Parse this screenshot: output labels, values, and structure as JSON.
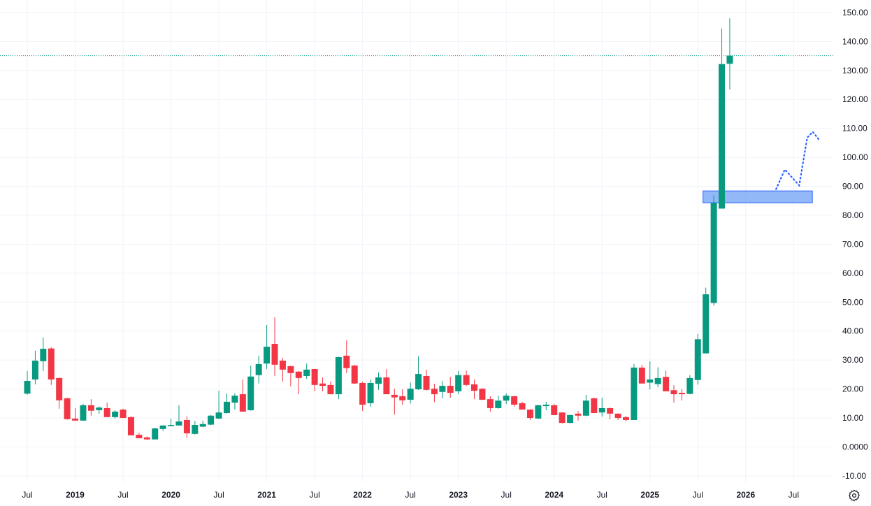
{
  "chart_data": {
    "type": "candlestick",
    "interval": "1M",
    "start": "2018-07",
    "ohlc_order": [
      "open",
      "high",
      "low",
      "close"
    ],
    "candles": [
      [
        18.4,
        26.2,
        18,
        22.8
      ],
      [
        23.3,
        33.2,
        21.6,
        29.8
      ],
      [
        29.6,
        37.8,
        26.2,
        33.9
      ],
      [
        34,
        34.4,
        21.4,
        23.3
      ],
      [
        23.8,
        24,
        13.2,
        16.1
      ],
      [
        16.8,
        17,
        9.4,
        9.6
      ],
      [
        9.8,
        13.4,
        9,
        9.1
      ],
      [
        9.1,
        14.9,
        9,
        14.4
      ],
      [
        14.4,
        16.5,
        10.8,
        12.5
      ],
      [
        12.7,
        14,
        11.5,
        13.6
      ],
      [
        13.4,
        15.3,
        10.3,
        10.3
      ],
      [
        10.3,
        12.7,
        9.8,
        12.2
      ],
      [
        12.9,
        13.2,
        10,
        10
      ],
      [
        10.3,
        10.6,
        4,
        4
      ],
      [
        4.2,
        4.9,
        3,
        3
      ],
      [
        3.3,
        3.6,
        2.4,
        2.6
      ],
      [
        2.6,
        6.6,
        2.6,
        6.4
      ],
      [
        6.2,
        7.5,
        5.5,
        7.4
      ],
      [
        7.2,
        9.8,
        7.2,
        7.6
      ],
      [
        7.4,
        14.4,
        7.4,
        8.8
      ],
      [
        9.3,
        10.6,
        3.2,
        4.7
      ],
      [
        4.5,
        9,
        4.3,
        7.6
      ],
      [
        7,
        9.1,
        6.8,
        7.9
      ],
      [
        7.7,
        11,
        7.5,
        10.8
      ],
      [
        9.8,
        19.4,
        9.6,
        11.9
      ],
      [
        11.7,
        18.5,
        11.5,
        15.6
      ],
      [
        15.3,
        18.5,
        12.9,
        17.7
      ],
      [
        18.2,
        23.3,
        12.2,
        12.2
      ],
      [
        12.7,
        28.1,
        12.5,
        24.3
      ],
      [
        24.8,
        31.5,
        21.9,
        28.6
      ],
      [
        28.8,
        42.1,
        26.9,
        34.6
      ],
      [
        35.6,
        44.8,
        24.5,
        28.4
      ],
      [
        29.8,
        30.8,
        22.6,
        26.7
      ],
      [
        27.9,
        28,
        20.9,
        25.5
      ],
      [
        26,
        26.2,
        18.2,
        23.8
      ],
      [
        24.5,
        28.8,
        23.5,
        26.7
      ],
      [
        26.9,
        27,
        19.2,
        21.4
      ],
      [
        21.9,
        24,
        19.2,
        21.1
      ],
      [
        21.4,
        22.6,
        18.2,
        18.2
      ],
      [
        18.2,
        31.2,
        16.5,
        31
      ],
      [
        31.5,
        36.8,
        25.5,
        27.2
      ],
      [
        28.1,
        28.3,
        21.7,
        21.9
      ],
      [
        22.1,
        22.5,
        12.4,
        14.6
      ],
      [
        15.1,
        23.3,
        13.9,
        22.1
      ],
      [
        21.8,
        25.7,
        19.7,
        24
      ],
      [
        24,
        26.9,
        18.2,
        18.2
      ],
      [
        18,
        20.1,
        11.2,
        17.1
      ],
      [
        17.5,
        19.9,
        14.6,
        16.1
      ],
      [
        16.3,
        22.2,
        15,
        20.1
      ],
      [
        19.9,
        31.3,
        19.7,
        25.2
      ],
      [
        24.5,
        26.7,
        19.5,
        19.7
      ],
      [
        20.1,
        21.8,
        15.5,
        18.2
      ],
      [
        19,
        22.8,
        16.8,
        21.1
      ],
      [
        21.1,
        24.2,
        17,
        18.7
      ],
      [
        19.2,
        26.2,
        18.2,
        24.8
      ],
      [
        24.8,
        26.4,
        21,
        21.4
      ],
      [
        21.6,
        23.3,
        16.5,
        19.4
      ],
      [
        20.1,
        20.3,
        16.1,
        16.3
      ],
      [
        16.5,
        17.5,
        12.2,
        13.4
      ],
      [
        13.4,
        17.7,
        13.2,
        16
      ],
      [
        16,
        18.5,
        14.8,
        17.7
      ],
      [
        17.5,
        17.7,
        13.9,
        14.6
      ],
      [
        15.1,
        15.6,
        12.9,
        12.9
      ],
      [
        12.9,
        13.1,
        9.3,
        10
      ],
      [
        9.8,
        14.6,
        9.6,
        14.4
      ],
      [
        14.1,
        15.6,
        12.7,
        14.6
      ],
      [
        14.4,
        14.9,
        11,
        11
      ],
      [
        11.9,
        12,
        8.1,
        8.3
      ],
      [
        8.3,
        11.2,
        8.1,
        11
      ],
      [
        11.5,
        12.4,
        9.1,
        10.8
      ],
      [
        10.8,
        18,
        10.6,
        16
      ],
      [
        16.8,
        17,
        11.7,
        11.7
      ],
      [
        11.9,
        17,
        10.5,
        13.4
      ],
      [
        13.4,
        13.6,
        9.5,
        11.5
      ],
      [
        11.5,
        11.6,
        9.3,
        10
      ],
      [
        10.3,
        10.7,
        8.8,
        9.3
      ],
      [
        9.3,
        28.6,
        9.3,
        27.4
      ],
      [
        27.4,
        28.3,
        21.9,
        21.9
      ],
      [
        22.2,
        29.6,
        19.9,
        23.3
      ],
      [
        21.7,
        27.5,
        20.6,
        23.8
      ],
      [
        24.2,
        26.3,
        19.2,
        19.2
      ],
      [
        19.6,
        21.3,
        15.3,
        18.2
      ],
      [
        18.7,
        20,
        16,
        18.2
      ],
      [
        18.3,
        24.8,
        18.2,
        23.8
      ],
      [
        23.1,
        39.1,
        21.5,
        37.2
      ],
      [
        32.3,
        55,
        32.3,
        52.7
      ],
      [
        49.7,
        86.9,
        48.8,
        84.3
      ],
      [
        82.3,
        144.5,
        82.3,
        132.2
      ],
      [
        132.3,
        148,
        123.4,
        135.1
      ]
    ],
    "colors": {
      "up": "#089981",
      "down": "#F23645",
      "grid": "#f0f3fa",
      "zone": "#6fa0f5",
      "projection": "#2962ff"
    },
    "last_price_line": 135.1,
    "zone": {
      "from": "2025-08",
      "to": "2026-09",
      "low": 84.3,
      "high": 88.4
    },
    "projection": [
      {
        "month": 93.8,
        "price": 89
      },
      {
        "month": 94.9,
        "price": 95.8
      },
      {
        "month": 96.7,
        "price": 90.3
      },
      {
        "month": 97.7,
        "price": 106.8
      },
      {
        "month": 98.4,
        "price": 108.8
      },
      {
        "month": 99.2,
        "price": 106
      }
    ],
    "ylim": [
      -14,
      152
    ],
    "y_ticks": [
      "150.00",
      "140.00",
      "130.00",
      "120.00",
      "110.00",
      "100.00",
      "90.00",
      "80.00",
      "70.00",
      "60.00",
      "50.00",
      "40.00",
      "30.00",
      "20.00",
      "10.00",
      "0.0000",
      "-10.00"
    ],
    "y_tick_values": [
      150,
      140,
      130,
      120,
      110,
      100,
      90,
      80,
      70,
      60,
      50,
      40,
      30,
      20,
      10,
      0,
      -10
    ],
    "x_ticks": [
      {
        "label": "Jul",
        "date": "2018-07"
      },
      {
        "label": "2019",
        "date": "2019-01",
        "year": true
      },
      {
        "label": "Jul",
        "date": "2019-07"
      },
      {
        "label": "2020",
        "date": "2020-01",
        "year": true
      },
      {
        "label": "Jul",
        "date": "2020-07"
      },
      {
        "label": "2021",
        "date": "2021-01",
        "year": true
      },
      {
        "label": "Jul",
        "date": "2021-07"
      },
      {
        "label": "2022",
        "date": "2022-01",
        "year": true
      },
      {
        "label": "Jul",
        "date": "2022-07"
      },
      {
        "label": "2023",
        "date": "2023-01",
        "year": true
      },
      {
        "label": "Jul",
        "date": "2023-07"
      },
      {
        "label": "2024",
        "date": "2024-01",
        "year": true
      },
      {
        "label": "Jul",
        "date": "2024-07"
      },
      {
        "label": "2025",
        "date": "2025-01",
        "year": true
      },
      {
        "label": "Jul",
        "date": "2025-07"
      },
      {
        "label": "2026",
        "date": "2026-01",
        "year": true
      },
      {
        "label": "Jul",
        "date": "2026-07"
      }
    ],
    "grid": true
  },
  "controls": {
    "settings_icon": "gear-icon"
  }
}
